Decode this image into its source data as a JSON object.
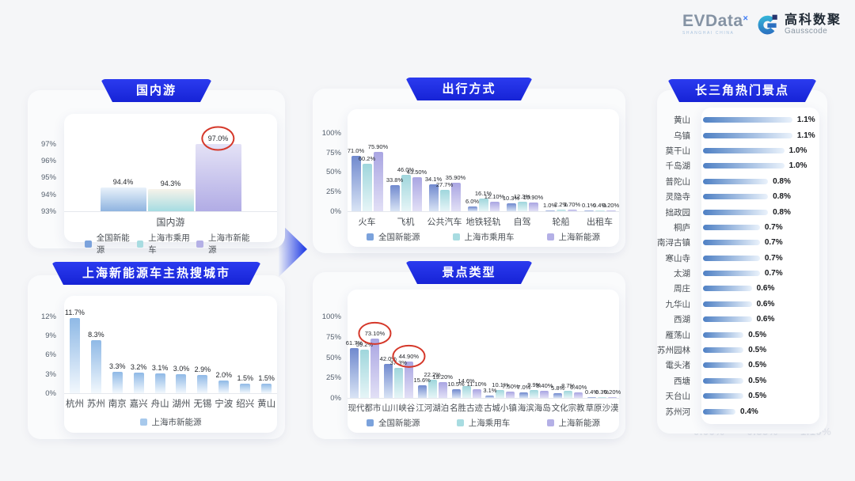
{
  "brand": {
    "evdata_logo": "EVData",
    "evdata_sup": "×",
    "evdata_sub": "SHANGHAI CHINA",
    "gauss_cn": "高科数聚",
    "gauss_en": "Gausscode"
  },
  "colors": {
    "banner_blue": "#1E2BE0",
    "annotation_red": "#D5382A",
    "series_national_blue": "#7BA2DC",
    "series_passenger_cyan": "#A8DCE1",
    "series_shanghai_purple": "#B4B0E6",
    "hbar_blue": "#4E80C4"
  },
  "footer_ghost": "0.00% 0.55% 1.10%",
  "chart_data": [
    {
      "id": "domestic_travel",
      "type": "grouped_bar",
      "title": "国内游",
      "categories": [
        "国内游"
      ],
      "ylim": [
        93,
        97.6
      ],
      "yticks": [
        93,
        94,
        95,
        96,
        97
      ],
      "series": [
        {
          "name": "全国新能源",
          "values": [
            94.4
          ],
          "labels": [
            "94.4%"
          ],
          "color": [
            "#E8F1FA",
            "#8FB4E0"
          ]
        },
        {
          "name": "上海市乘用车",
          "values": [
            94.3
          ],
          "labels": [
            "94.3%"
          ],
          "color": [
            "#F6F3EA",
            "#A5DCE2"
          ]
        },
        {
          "name": "上海市新能源",
          "values": [
            97.0
          ],
          "labels": [
            "97.0%"
          ],
          "color": [
            "#E4E2F6",
            "#B1ACE5"
          ]
        }
      ],
      "annotated": [
        [
          2,
          0
        ]
      ],
      "legend": [
        {
          "label": "全国新能源",
          "color": "#7BA2DC"
        },
        {
          "label": "上海市乘用车",
          "color": "#A8DCE1"
        },
        {
          "label": "上海市新能源",
          "color": "#B4B0E6"
        }
      ]
    },
    {
      "id": "hot_search_cities",
      "type": "grouped_bar",
      "title": "上海新能源车主热搜城市",
      "categories": [
        "杭州",
        "苏州",
        "南京",
        "嘉兴",
        "舟山",
        "湖州",
        "无锡",
        "宁波",
        "绍兴",
        "黄山"
      ],
      "ylim": [
        0,
        12.6
      ],
      "yticks": [
        0,
        3,
        6,
        9,
        12
      ],
      "series": [
        {
          "name": "上海市新能源",
          "values": [
            11.7,
            8.3,
            3.3,
            3.2,
            3.1,
            3.0,
            2.9,
            2.0,
            1.5,
            1.5
          ],
          "labels": [
            "11.7%",
            "8.3%",
            "3.3%",
            "3.2%",
            "3.1%",
            "3.0%",
            "2.9%",
            "2.0%",
            "1.5%",
            "1.5%"
          ],
          "color": [
            "#8FB9E6",
            "#F2F8FD"
          ]
        }
      ],
      "annotated": [],
      "legend": [
        {
          "label": "上海市新能源",
          "color": "#A7C9EC"
        }
      ]
    },
    {
      "id": "travel_modes",
      "type": "grouped_bar",
      "title": "出行方式",
      "categories": [
        "火车",
        "飞机",
        "公共汽车",
        "地铁轻轨",
        "自驾",
        "轮船",
        "出租车"
      ],
      "ylim": [
        0,
        107
      ],
      "yticks": [
        0,
        25,
        50,
        75,
        100
      ],
      "series": [
        {
          "name": "全国新能源",
          "values": [
            71.0,
            33.8,
            34.1,
            6.0,
            10.3,
            1.0,
            0.1
          ],
          "labels": [
            "71.0%",
            "33.8%",
            "34.1%",
            "6.0%",
            "10.3%",
            "1.0%",
            "0.1%"
          ],
          "color": [
            "#7089CE",
            "#D9E4F5"
          ]
        },
        {
          "name": "上海市乘用车",
          "values": [
            60.2,
            46.0,
            27.7,
            16.1,
            12.3,
            2.2,
            0.4
          ],
          "labels": [
            "60.2%",
            "46.0%",
            "27.7%",
            "16.1%",
            "12.3%",
            "2.2%",
            "0.4%"
          ],
          "color": [
            "#9FD6DC",
            "#E6F5F7"
          ]
        },
        {
          "name": "上海新能源",
          "values": [
            75.9,
            43.5,
            35.9,
            12.1,
            10.9,
            1.7,
            0.2
          ],
          "labels": [
            "75.90%",
            "43.50%",
            "35.90%",
            "12.10%",
            "10.90%",
            "1.70%",
            "0.20%"
          ],
          "color": [
            "#A9A5E2",
            "#E2E0F6"
          ]
        }
      ],
      "annotated": [],
      "legend": [
        {
          "label": "全国新能源",
          "color": "#7BA2DC"
        },
        {
          "label": "上海市乘用车",
          "color": "#A8DCE1"
        },
        {
          "label": "上海新能源",
          "color": "#B4B0E6"
        }
      ]
    },
    {
      "id": "attraction_types",
      "type": "grouped_bar",
      "title": "景点类型",
      "categories": [
        "现代都市",
        "山川峡谷",
        "江河湖泊",
        "名胜古迹",
        "古城小镇",
        "海滨海岛",
        "文化宗教",
        "草原沙漠"
      ],
      "ylim": [
        0,
        107
      ],
      "yticks": [
        0,
        25,
        50,
        75,
        100
      ],
      "series": [
        {
          "name": "全国新能源",
          "values": [
            61.7,
            42.0,
            15.6,
            10.5,
            3.1,
            7.0,
            5.8,
            0.4
          ],
          "labels": [
            "61.7%",
            "42.0%",
            "15.6%",
            "10.5%",
            "3.1%",
            "7.0%",
            "5.8%",
            "0.4%"
          ],
          "color": [
            "#7089CE",
            "#D9E4F5"
          ]
        },
        {
          "name": "上海乘用车",
          "values": [
            59.2,
            37.3,
            22.2,
            14.6,
            10.1,
            9.9,
            8.7,
            0.3
          ],
          "labels": [
            "59.2%",
            "37.3%",
            "22.2%",
            "14.6%",
            "10.1%",
            "9.9%",
            "8.7%",
            "0.3%"
          ],
          "color": [
            "#9FD6DC",
            "#E6F5F7"
          ]
        },
        {
          "name": "上海新能源",
          "values": [
            73.1,
            44.9,
            19.2,
            11.1,
            7.5,
            8.4,
            6.4,
            0.2
          ],
          "labels": [
            "73.10%",
            "44.90%",
            "19.20%",
            "11.10%",
            "7.50%",
            "8.40%",
            "6.40%",
            "0.20%"
          ],
          "color": [
            "#A9A5E2",
            "#E2E0F6"
          ]
        }
      ],
      "annotated": [
        [
          2,
          0
        ],
        [
          2,
          1
        ]
      ],
      "legend": [
        {
          "label": "全国新能源",
          "color": "#7BA2DC"
        },
        {
          "label": "上海乘用车",
          "color": "#A8DCE1"
        },
        {
          "label": "上海新能源",
          "color": "#B4B0E6"
        }
      ]
    },
    {
      "id": "yangtze_hotspots",
      "type": "hbar",
      "title": "长三角热门景点",
      "xmax": 1.15,
      "color": [
        "#4E80C4",
        "#EAF2FB"
      ],
      "items": [
        {
          "name": "黄山",
          "value": 1.1,
          "label": "1.1%"
        },
        {
          "name": "乌镇",
          "value": 1.1,
          "label": "1.1%"
        },
        {
          "name": "莫干山",
          "value": 1.0,
          "label": "1.0%"
        },
        {
          "name": "千岛湖",
          "value": 1.0,
          "label": "1.0%"
        },
        {
          "name": "普陀山",
          "value": 0.8,
          "label": "0.8%"
        },
        {
          "name": "灵隐寺",
          "value": 0.8,
          "label": "0.8%"
        },
        {
          "name": "拙政园",
          "value": 0.8,
          "label": "0.8%"
        },
        {
          "name": "桐庐",
          "value": 0.7,
          "label": "0.7%"
        },
        {
          "name": "南浔古镇",
          "value": 0.7,
          "label": "0.7%"
        },
        {
          "name": "寒山寺",
          "value": 0.7,
          "label": "0.7%"
        },
        {
          "name": "太湖",
          "value": 0.7,
          "label": "0.7%"
        },
        {
          "name": "周庄",
          "value": 0.6,
          "label": "0.6%"
        },
        {
          "name": "九华山",
          "value": 0.6,
          "label": "0.6%"
        },
        {
          "name": "西湖",
          "value": 0.6,
          "label": "0.6%"
        },
        {
          "name": "雁荡山",
          "value": 0.5,
          "label": "0.5%"
        },
        {
          "name": "苏州园林",
          "value": 0.5,
          "label": "0.5%"
        },
        {
          "name": "電头渚",
          "value": 0.5,
          "label": "0.5%"
        },
        {
          "name": "西塘",
          "value": 0.5,
          "label": "0.5%"
        },
        {
          "name": "天台山",
          "value": 0.5,
          "label": "0.5%"
        },
        {
          "name": "苏州河",
          "value": 0.4,
          "label": "0.4%"
        }
      ]
    }
  ]
}
